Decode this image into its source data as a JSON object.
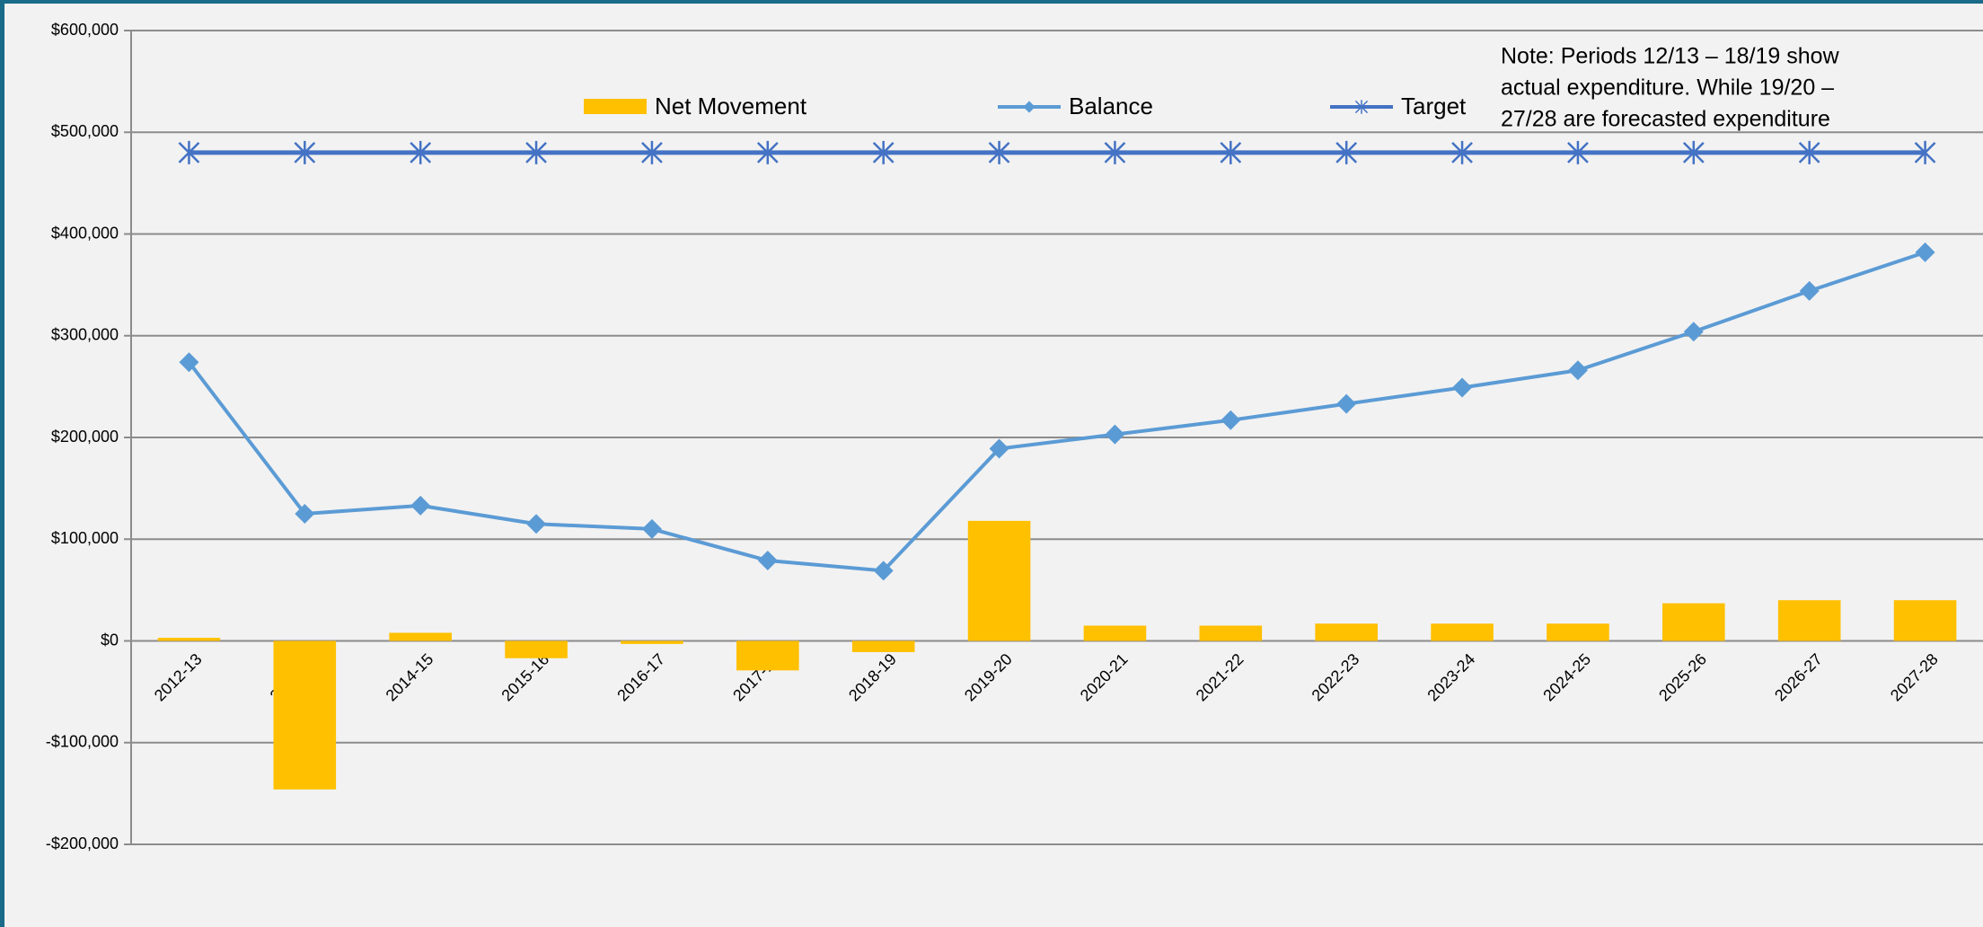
{
  "chart_data": {
    "type": "bar-line",
    "annotation": [
      "Note: Periods 12/13 – 18/19 show",
      "actual expenditure. While 19/20 –",
      "27/28 are forecasted  expenditure"
    ],
    "categories": [
      "2012-13",
      "2013-14",
      "2014-15",
      "2015-16",
      "2016-17",
      "2017-18",
      "2018-19",
      "2019-20",
      "2020-21",
      "2021-22",
      "2022-23",
      "2023-24",
      "2024-25",
      "2025-26",
      "2026-27",
      "2027-28"
    ],
    "series": [
      {
        "name": "Net Movement",
        "type": "bar",
        "color": "#ffc000",
        "values": [
          3000,
          -146000,
          8000,
          -17000,
          -3000,
          -29000,
          -11000,
          118000,
          15000,
          15000,
          17000,
          17000,
          17000,
          37000,
          40000,
          40000
        ]
      },
      {
        "name": "Balance",
        "type": "line",
        "marker": "diamond",
        "color": "#5b9bd5",
        "values": [
          274000,
          125000,
          133000,
          115000,
          110000,
          79000,
          69000,
          189000,
          203000,
          217000,
          233000,
          249000,
          266000,
          304000,
          344000,
          382000
        ]
      },
      {
        "name": "Target",
        "type": "line",
        "marker": "star",
        "color": "#4472c4",
        "values": [
          480000,
          480000,
          480000,
          480000,
          480000,
          480000,
          480000,
          480000,
          480000,
          480000,
          480000,
          480000,
          480000,
          480000,
          480000,
          480000
        ]
      }
    ],
    "ylim": [
      -200000,
      600000
    ],
    "yticks": [
      {
        "value": -200000,
        "label": "-$200,000"
      },
      {
        "value": -100000,
        "label": "-$100,000"
      },
      {
        "value": 0,
        "label": "$0"
      },
      {
        "value": 100000,
        "label": "$100,000"
      },
      {
        "value": 200000,
        "label": "$200,000"
      },
      {
        "value": 300000,
        "label": "$300,000"
      },
      {
        "value": 400000,
        "label": "$400,000"
      },
      {
        "value": 500000,
        "label": "$500,000"
      },
      {
        "value": 600000,
        "label": "$600,000"
      }
    ],
    "grid": true,
    "legend": "top"
  }
}
